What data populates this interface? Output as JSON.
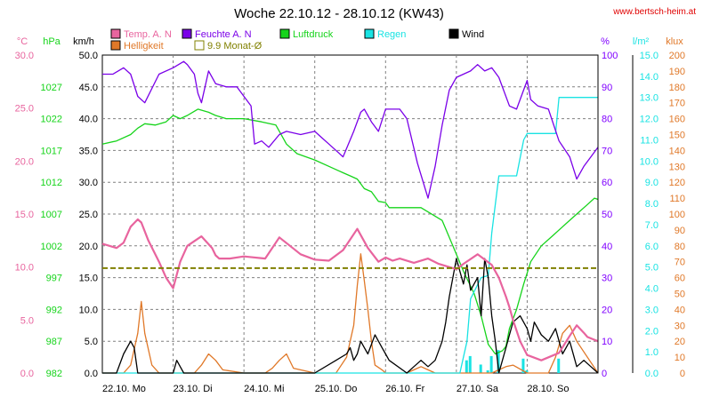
{
  "title": "Woche 22.10.12 - 28.10.12 (KW43)",
  "site": "www.bertsch-heim.at",
  "colors": {
    "temp": "#e8649e",
    "humidity": "#7a00e8",
    "pressure": "#16d41b",
    "rain": "#19e3e3",
    "wind": "#000000",
    "brightness": "#e07828",
    "monthavg": "#808000",
    "site": "#e00000",
    "humidityAxis": "#8000ff",
    "brightnessAxis": "#e07828",
    "grid": "#808080"
  },
  "legend": [
    {
      "key": "temp",
      "label": "Temp. A. N",
      "color": "#e8649e"
    },
    {
      "key": "humidity",
      "label": "Feuchte A. N",
      "color": "#7a00e8"
    },
    {
      "key": "pressure",
      "label": "Luftdruck",
      "color": "#16d41b"
    },
    {
      "key": "rain",
      "label": "Regen",
      "color": "#19e3e3"
    },
    {
      "key": "wind",
      "label": "Wind",
      "color": "#000000"
    },
    {
      "key": "brightness",
      "label": "Helligkeit",
      "color": "#e07828"
    },
    {
      "key": "monthavg",
      "label": "9.9 Monat-Ø",
      "color": "#808000"
    }
  ],
  "axes": {
    "temp": {
      "unit": "°C",
      "ticks": [
        "30.0",
        "25.0",
        "20.0",
        "15.0",
        "10.0",
        "5.0",
        "0.0"
      ]
    },
    "pressure": {
      "unit": "hPa",
      "ticks": [
        "1027",
        "1022",
        "1017",
        "1012",
        "1007",
        "1002",
        "997",
        "992",
        "987",
        "982"
      ]
    },
    "wind": {
      "unit": "km/h",
      "ticks": [
        "50.0",
        "45.0",
        "40.0",
        "35.0",
        "30.0",
        "25.0",
        "20.0",
        "15.0",
        "10.0",
        "5.0",
        "0.0"
      ]
    },
    "humidity": {
      "unit": "%",
      "ticks": [
        "100",
        "90",
        "80",
        "70",
        "60",
        "50",
        "40",
        "30",
        "20",
        "10",
        "0"
      ]
    },
    "rain": {
      "unit": "l/m²",
      "ticks": [
        "15.0",
        "14.0",
        "13.0",
        "12.0",
        "11.0",
        "10.0",
        "9.0",
        "8.0",
        "7.0",
        "6.0",
        "5.0",
        "4.0",
        "3.0",
        "2.0",
        "1.0",
        "0.0"
      ]
    },
    "brightness": {
      "unit": "klux",
      "ticks": [
        "200",
        "190",
        "180",
        "170",
        "160",
        "150",
        "140",
        "130",
        "120",
        "110",
        "100",
        "90",
        "80",
        "70",
        "60",
        "50",
        "40",
        "30",
        "20",
        "10",
        "0"
      ]
    },
    "x": {
      "ticks": [
        "22.10. Mo",
        "23.10. Di",
        "24.10. Mi",
        "25.10. Do",
        "26.10. Fr",
        "27.10. Sa",
        "28.10. So"
      ]
    }
  },
  "chart_data": {
    "type": "line",
    "title": "Woche 22.10.12 - 28.10.12 (KW43)",
    "x_unit": "day",
    "xlim": [
      0,
      7
    ],
    "categories": [
      "22.10. Mo",
      "23.10. Di",
      "24.10. Mi",
      "25.10. Do",
      "26.10. Fr",
      "27.10. Sa",
      "28.10. So"
    ],
    "series": [
      {
        "name": "Temp. A. N",
        "axis": "temp",
        "unit": "°C",
        "ylim": [
          0,
          30
        ],
        "x": [
          0,
          0.1,
          0.2,
          0.3,
          0.4,
          0.5,
          0.55,
          0.65,
          0.8,
          0.9,
          1.0,
          1.1,
          1.2,
          1.4,
          1.55,
          1.6,
          1.65,
          1.8,
          2.0,
          2.3,
          2.5,
          2.65,
          2.8,
          3.0,
          3.2,
          3.4,
          3.6,
          3.75,
          3.9,
          4.0,
          4.1,
          4.2,
          4.4,
          4.6,
          4.75,
          4.9,
          5.0,
          5.1,
          5.3,
          5.5,
          5.6,
          5.7,
          5.75,
          5.8,
          5.9,
          6.0,
          6.2,
          6.45,
          6.6,
          6.7,
          6.8,
          6.85,
          7.0
        ],
        "y": [
          12.2,
          12.0,
          11.8,
          12.3,
          13.8,
          14.5,
          14.2,
          12.5,
          10.5,
          9.0,
          8.0,
          10.5,
          12.0,
          12.9,
          11.8,
          11.1,
          10.8,
          10.8,
          11.0,
          10.8,
          12.8,
          12.0,
          11.2,
          10.7,
          10.6,
          11.6,
          13.6,
          11.8,
          10.5,
          10.9,
          10.6,
          10.8,
          10.4,
          10.8,
          10.3,
          10.0,
          9.8,
          10.3,
          11.2,
          10.2,
          9.0,
          7.2,
          6.2,
          5.0,
          3.0,
          1.7,
          1.2,
          1.9,
          3.5,
          4.5,
          3.8,
          3.4,
          3.0
        ]
      },
      {
        "name": "Feuchte A. N",
        "axis": "humidity",
        "unit": "%",
        "ylim": [
          0,
          100
        ],
        "x": [
          0,
          0.15,
          0.3,
          0.4,
          0.5,
          0.6,
          0.8,
          1.0,
          1.15,
          1.2,
          1.3,
          1.35,
          1.4,
          1.5,
          1.6,
          1.75,
          1.9,
          2.0,
          2.1,
          2.15,
          2.25,
          2.35,
          2.5,
          2.6,
          2.8,
          3.0,
          3.1,
          3.2,
          3.4,
          3.55,
          3.65,
          3.7,
          3.8,
          3.9,
          4.0,
          4.1,
          4.2,
          4.3,
          4.45,
          4.6,
          4.7,
          4.8,
          4.9,
          5.0,
          5.1,
          5.2,
          5.3,
          5.4,
          5.5,
          5.6,
          5.75,
          5.85,
          6.0,
          6.05,
          6.15,
          6.3,
          6.45,
          6.6,
          6.7,
          6.8,
          6.9,
          7.0
        ],
        "y": [
          94,
          94,
          96,
          94,
          87,
          85,
          94,
          96,
          98,
          97,
          94,
          88,
          85,
          95,
          91,
          90,
          90,
          87,
          84,
          72,
          73,
          71,
          75,
          76,
          75,
          76,
          74,
          72,
          68,
          76,
          82,
          83,
          79,
          76,
          83,
          83,
          83,
          80,
          66,
          55,
          65,
          78,
          89,
          93,
          94,
          95,
          97,
          95,
          96,
          93,
          84,
          83,
          92,
          86,
          84,
          83,
          73,
          68,
          61,
          65,
          68,
          71
        ]
      },
      {
        "name": "Luftdruck",
        "axis": "pressure",
        "unit": "hPa",
        "ylim": [
          982,
          1032
        ],
        "x": [
          0,
          0.2,
          0.4,
          0.5,
          0.6,
          0.75,
          0.9,
          1.0,
          1.1,
          1.2,
          1.35,
          1.5,
          1.6,
          1.75,
          2.0,
          2.25,
          2.45,
          2.6,
          2.75,
          3.0,
          3.2,
          3.4,
          3.5,
          3.6,
          3.7,
          3.8,
          3.9,
          4.0,
          4.05,
          4.15,
          4.5,
          4.8,
          4.95,
          5.1,
          5.25,
          5.35,
          5.45,
          5.55,
          5.65,
          5.7,
          5.75,
          5.85,
          5.95,
          6.05,
          6.2,
          6.35,
          6.5,
          6.7,
          6.85,
          6.95,
          7.0
        ],
        "y": [
          1018,
          1018.5,
          1019.5,
          1020.5,
          1021.2,
          1021,
          1021.5,
          1022.5,
          1022,
          1022.5,
          1023.5,
          1023,
          1022.5,
          1022,
          1022,
          1021.5,
          1021,
          1018,
          1016.5,
          1015.5,
          1014.5,
          1013.5,
          1013,
          1012.5,
          1011,
          1010.5,
          1009,
          1008.8,
          1008,
          1008,
          1008,
          1006,
          1002,
          998,
          994.5,
          991,
          986.5,
          985,
          985.5,
          986.2,
          989,
          992,
          996,
          999.5,
          1002,
          1003.5,
          1005,
          1007,
          1008.5,
          1009.5,
          1009.3
        ]
      },
      {
        "name": "Regen",
        "axis": "rain",
        "unit": "l/m²",
        "ylim": [
          0,
          15
        ],
        "x": [
          0,
          4.9,
          5.05,
          5.15,
          5.2,
          5.35,
          5.45,
          5.5,
          5.6,
          5.85,
          5.95,
          6.0,
          6.4,
          6.45,
          7.0
        ],
        "y": [
          0,
          0,
          0,
          1.5,
          3.5,
          4.5,
          4.6,
          6.6,
          9.3,
          9.3,
          11.0,
          11.3,
          11.3,
          13.0,
          13.0
        ]
      },
      {
        "name": "Wind",
        "axis": "wind",
        "unit": "km/h",
        "ylim": [
          0,
          50
        ],
        "x": [
          0,
          0.2,
          0.3,
          0.4,
          0.45,
          0.5,
          0.6,
          0.7,
          1.0,
          1.05,
          1.1,
          1.15,
          1.2,
          1.6,
          2.0,
          3.0,
          3.3,
          3.45,
          3.5,
          3.55,
          3.6,
          3.65,
          3.7,
          3.75,
          3.85,
          3.95,
          4.0,
          4.05,
          4.3,
          4.4,
          4.5,
          4.6,
          4.7,
          4.8,
          4.85,
          4.9,
          4.95,
          5.0,
          5.05,
          5.1,
          5.15,
          5.2,
          5.3,
          5.35,
          5.4,
          5.45,
          5.5,
          5.55,
          5.6,
          5.65,
          5.7,
          5.75,
          5.8,
          5.9,
          6.0,
          6.05,
          6.1,
          6.2,
          6.3,
          6.4,
          6.5,
          6.6,
          6.7,
          6.8,
          6.9,
          7.0
        ],
        "y": [
          0,
          0,
          3,
          5,
          4,
          0,
          0,
          0,
          0,
          2,
          1,
          0,
          0,
          0,
          0,
          0,
          2,
          3,
          4,
          2,
          3,
          5,
          4,
          3,
          6,
          4,
          3,
          2,
          0,
          1,
          2,
          1,
          2,
          5,
          8,
          12,
          15,
          18,
          16,
          14,
          17,
          13,
          15,
          9,
          18,
          15,
          9,
          5,
          0,
          2,
          4,
          6,
          8,
          9,
          7,
          5,
          8,
          6,
          5,
          7,
          3,
          5,
          1,
          2,
          1,
          0
        ]
      },
      {
        "name": "Helligkeit",
        "axis": "brightness",
        "unit": "klux",
        "ylim": [
          0,
          200
        ],
        "x": [
          0,
          0.3,
          0.4,
          0.5,
          0.55,
          0.6,
          0.7,
          0.8,
          1.0,
          1.3,
          1.4,
          1.5,
          1.6,
          1.7,
          2.0,
          2.3,
          2.4,
          2.5,
          2.6,
          2.7,
          3.0,
          3.3,
          3.45,
          3.55,
          3.6,
          3.65,
          3.7,
          3.75,
          3.8,
          3.85,
          3.95,
          4.0,
          4.3,
          4.4,
          4.5,
          4.6,
          4.7,
          5.0,
          5.3,
          5.5,
          5.6,
          5.7,
          5.8,
          6.0,
          6.3,
          6.4,
          6.5,
          6.6,
          6.7,
          7.0
        ],
        "y": [
          0,
          0,
          5,
          25,
          45,
          25,
          5,
          0,
          0,
          0,
          5,
          12,
          8,
          2,
          0,
          0,
          3,
          8,
          12,
          3,
          0,
          0,
          10,
          30,
          55,
          75,
          58,
          40,
          20,
          5,
          2,
          0,
          0,
          2,
          4,
          2,
          0,
          0,
          0,
          0,
          2,
          4,
          5,
          0,
          0,
          10,
          25,
          30,
          20,
          0
        ]
      },
      {
        "name": "9.9 Monat-Ø",
        "axis": "temp",
        "unit": "°C",
        "ylim": [
          0,
          30
        ],
        "x": [
          0,
          7
        ],
        "y": [
          9.9,
          9.9
        ]
      }
    ]
  }
}
